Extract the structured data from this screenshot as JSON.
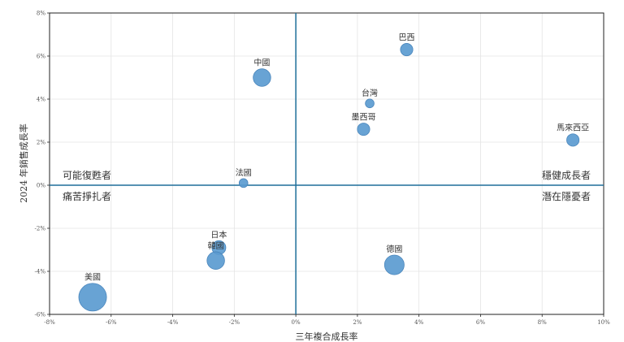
{
  "chart_data": {
    "type": "scatter",
    "title": "",
    "xlabel": "三年複合成長率",
    "ylabel": "2024 年銷售成長率",
    "xlim": [
      -8,
      10
    ],
    "ylim": [
      -6,
      8
    ],
    "x_ticks": [
      "-8%",
      "-6%",
      "-4%",
      "-2%",
      "0%",
      "2%",
      "4%",
      "6%",
      "8%",
      "10%"
    ],
    "y_ticks": [
      "-6%",
      "-4%",
      "-2%",
      "0%",
      "2%",
      "4%",
      "6%",
      "8%"
    ],
    "grid": true,
    "point_color": "#5b9bd0",
    "reference_line_color": "#1f6f9a",
    "quadrant_labels": {
      "top_left": "可能復甦者",
      "bottom_left": "痛苦掙扎者",
      "top_right": "穩健成長者",
      "bottom_right": "潛在隱憂者"
    },
    "points": [
      {
        "label": "巴西",
        "x": 3.6,
        "y": 6.3,
        "size": 2
      },
      {
        "label": "中國",
        "x": -1.1,
        "y": 5.0,
        "size": 4
      },
      {
        "label": "台灣",
        "x": 2.4,
        "y": 3.8,
        "size": 1
      },
      {
        "label": "墨西哥",
        "x": 2.2,
        "y": 2.6,
        "size": 2
      },
      {
        "label": "馬來西亞",
        "x": 9.0,
        "y": 2.1,
        "size": 2
      },
      {
        "label": "法國",
        "x": -1.7,
        "y": 0.1,
        "size": 1
      },
      {
        "label": "日本",
        "x": -2.5,
        "y": -2.9,
        "size": 2.5
      },
      {
        "label": "韓國",
        "x": -2.6,
        "y": -3.5,
        "size": 4
      },
      {
        "label": "德國",
        "x": 3.2,
        "y": -3.7,
        "size": 5
      },
      {
        "label": "美國",
        "x": -6.6,
        "y": -5.2,
        "size": 10
      }
    ]
  }
}
